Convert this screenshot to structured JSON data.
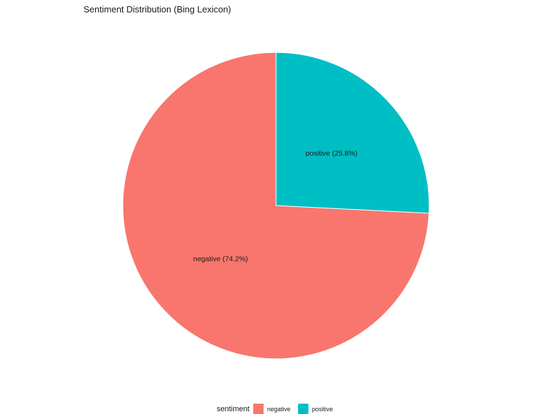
{
  "chart_data": {
    "type": "pie",
    "title": "Sentiment Distribution (Bing Lexicon)",
    "legend_title": "sentiment",
    "legend_position": "bottom",
    "slices": [
      {
        "category": "negative",
        "percent": 74.2,
        "label": "negative (74.2%)",
        "color": "#F8766D"
      },
      {
        "category": "positive",
        "percent": 25.8,
        "label": "positive (25.8%)",
        "color": "#00BFC4"
      }
    ]
  }
}
